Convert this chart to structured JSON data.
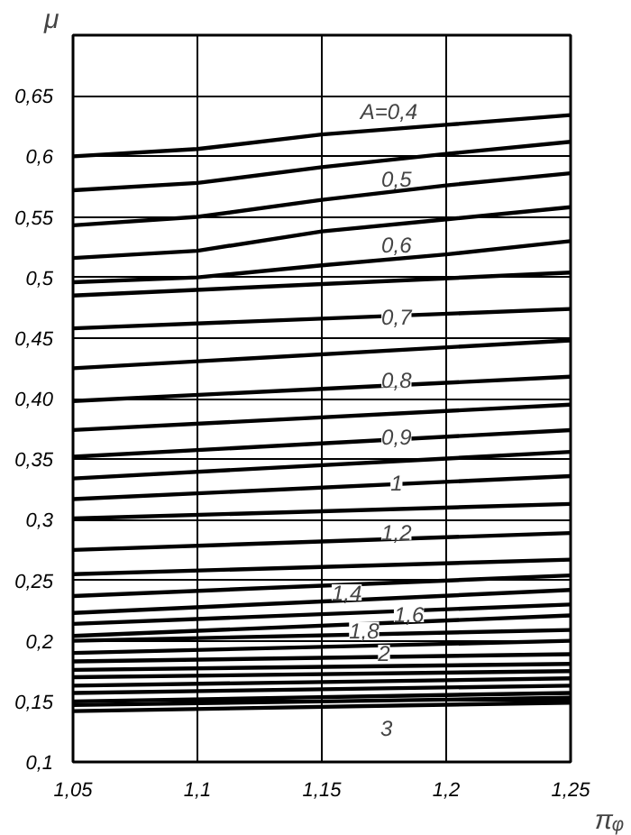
{
  "chart_data": {
    "type": "line",
    "xlabel": "πᵩ",
    "ylabel": "μ",
    "xlim": [
      1.05,
      1.25
    ],
    "ylim": [
      0.1,
      0.7
    ],
    "xticks": [
      {
        "value": 1.05,
        "label": "1,05"
      },
      {
        "value": 1.1,
        "label": "1,1"
      },
      {
        "value": 1.15,
        "label": "1,15"
      },
      {
        "value": 1.2,
        "label": "1,2"
      },
      {
        "value": 1.25,
        "label": "1,25"
      }
    ],
    "yticks": [
      {
        "value": 0.1,
        "label": "0,1"
      },
      {
        "value": 0.15,
        "label": "0,15"
      },
      {
        "value": 0.2,
        "label": "0,2"
      },
      {
        "value": 0.25,
        "label": "0,25"
      },
      {
        "value": 0.3,
        "label": "0,3"
      },
      {
        "value": 0.35,
        "label": "0,35"
      },
      {
        "value": 0.4,
        "label": "0,40"
      },
      {
        "value": 0.45,
        "label": "0,45"
      },
      {
        "value": 0.5,
        "label": "0,5"
      },
      {
        "value": 0.55,
        "label": "0,55"
      },
      {
        "value": 0.6,
        "label": "0,6"
      },
      {
        "value": 0.65,
        "label": "0,65"
      },
      {
        "value": 0.7,
        "label": null
      }
    ],
    "grid": true,
    "line_style": "solid",
    "series": [
      {
        "color": "#000000",
        "x": [
          1.05,
          1.1,
          1.15,
          1.2,
          1.25
        ],
        "values": [
          0.6,
          0.606,
          0.618,
          0.626,
          0.634
        ]
      },
      {
        "color": "#000000",
        "x": [
          1.05,
          1.1,
          1.15,
          1.2,
          1.25
        ],
        "values": [
          0.572,
          0.578,
          0.591,
          0.602,
          0.612
        ]
      },
      {
        "color": "#000000",
        "x": [
          1.05,
          1.1,
          1.15,
          1.2,
          1.25
        ],
        "values": [
          0.543,
          0.55,
          0.564,
          0.576,
          0.586
        ]
      },
      {
        "color": "#000000",
        "x": [
          1.05,
          1.1,
          1.15,
          1.2,
          1.25
        ],
        "values": [
          0.516,
          0.522,
          0.538,
          0.548,
          0.558
        ]
      },
      {
        "color": "#000000",
        "x": [
          1.05,
          1.1,
          1.15,
          1.2,
          1.25
        ],
        "values": [
          0.496,
          0.5,
          0.51,
          0.519,
          0.53
        ]
      },
      {
        "color": "#000000",
        "x": [
          1.05,
          1.25
        ],
        "values": [
          0.485,
          0.504
        ]
      },
      {
        "color": "#000000",
        "x": [
          1.05,
          1.25
        ],
        "values": [
          0.458,
          0.474
        ]
      },
      {
        "color": "#000000",
        "x": [
          1.05,
          1.25
        ],
        "values": [
          0.425,
          0.448
        ]
      },
      {
        "color": "#000000",
        "x": [
          1.05,
          1.25
        ],
        "values": [
          0.398,
          0.418
        ]
      },
      {
        "color": "#000000",
        "x": [
          1.05,
          1.25
        ],
        "values": [
          0.374,
          0.395
        ]
      },
      {
        "color": "#000000",
        "x": [
          1.05,
          1.25
        ],
        "values": [
          0.352,
          0.374
        ]
      },
      {
        "color": "#000000",
        "x": [
          1.05,
          1.25
        ],
        "values": [
          0.334,
          0.356
        ]
      },
      {
        "color": "#000000",
        "x": [
          1.05,
          1.25
        ],
        "values": [
          0.317,
          0.336
        ]
      },
      {
        "color": "#000000",
        "x": [
          1.05,
          1.25
        ],
        "values": [
          0.301,
          0.313
        ]
      },
      {
        "color": "#000000",
        "x": [
          1.05,
          1.25
        ],
        "values": [
          0.275,
          0.289
        ]
      },
      {
        "color": "#000000",
        "x": [
          1.05,
          1.25
        ],
        "values": [
          0.255,
          0.267
        ]
      },
      {
        "color": "#000000",
        "x": [
          1.05,
          1.25
        ],
        "values": [
          0.237,
          0.254
        ]
      },
      {
        "color": "#000000",
        "x": [
          1.05,
          1.25
        ],
        "values": [
          0.223,
          0.242
        ]
      },
      {
        "color": "#000000",
        "x": [
          1.05,
          1.25
        ],
        "values": [
          0.214,
          0.23
        ]
      },
      {
        "color": "#000000",
        "x": [
          1.05,
          1.25
        ],
        "values": [
          0.204,
          0.221
        ]
      },
      {
        "color": "#000000",
        "x": [
          1.05,
          1.25
        ],
        "values": [
          0.2,
          0.209
        ]
      },
      {
        "color": "#000000",
        "x": [
          1.05,
          1.25
        ],
        "values": [
          0.19,
          0.2
        ]
      },
      {
        "color": "#000000",
        "x": [
          1.05,
          1.25
        ],
        "values": [
          0.183,
          0.189
        ]
      },
      {
        "color": "#000000",
        "x": [
          1.05,
          1.25
        ],
        "values": [
          0.176,
          0.181
        ]
      },
      {
        "color": "#000000",
        "x": [
          1.05,
          1.25
        ],
        "values": [
          0.17,
          0.175
        ]
      },
      {
        "color": "#000000",
        "x": [
          1.05,
          1.25
        ],
        "values": [
          0.163,
          0.169
        ]
      },
      {
        "color": "#000000",
        "x": [
          1.05,
          1.25
        ],
        "values": [
          0.157,
          0.163
        ]
      },
      {
        "color": "#000000",
        "x": [
          1.05,
          1.25
        ],
        "values": [
          0.15,
          0.157
        ]
      },
      {
        "color": "#000000",
        "x": [
          1.05,
          1.25
        ],
        "values": [
          0.147,
          0.153
        ]
      },
      {
        "color": "#000000",
        "x": [
          1.05,
          1.25
        ],
        "values": [
          0.142,
          0.149
        ]
      }
    ],
    "annotations": [
      {
        "text": "A=0,4",
        "x": 1.177,
        "y": 0.637
      },
      {
        "text": "0,5",
        "x": 1.18,
        "y": 0.582
      },
      {
        "text": "0,6",
        "x": 1.18,
        "y": 0.527
      },
      {
        "text": "0,7",
        "x": 1.18,
        "y": 0.468
      },
      {
        "text": "0,8",
        "x": 1.18,
        "y": 0.416
      },
      {
        "text": "0,9",
        "x": 1.18,
        "y": 0.369
      },
      {
        "text": "1",
        "x": 1.18,
        "y": 0.331
      },
      {
        "text": "1,2",
        "x": 1.18,
        "y": 0.29
      },
      {
        "text": "1,4",
        "x": 1.16,
        "y": 0.24
      },
      {
        "text": "1,6",
        "x": 1.185,
        "y": 0.222
      },
      {
        "text": "1,8",
        "x": 1.167,
        "y": 0.209
      },
      {
        "text": "2",
        "x": 1.175,
        "y": 0.19
      },
      {
        "text": "3",
        "x": 1.176,
        "y": 0.128
      }
    ]
  }
}
